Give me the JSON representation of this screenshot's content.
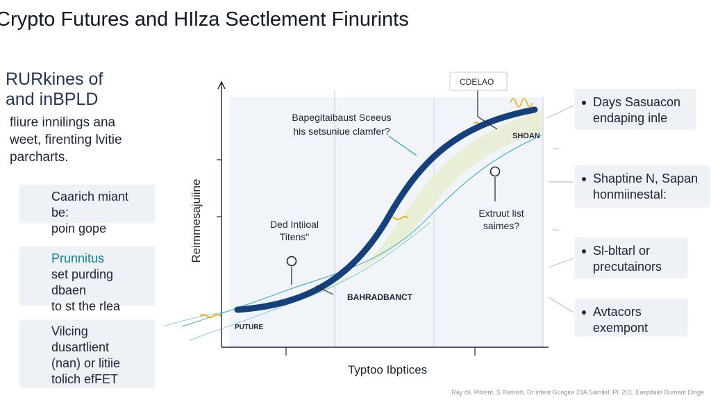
{
  "title": "Crypto Futures and HIlza Sectlement Finurints",
  "intro": {
    "heading": "RURkines of\nand inBPLD",
    "body": "fliure innilings ana\nweet, firenting lvitie\nparcharts."
  },
  "left_cards": [
    {
      "text": "Caarich miant be:\npoin gope",
      "highlight": false
    },
    {
      "text_teal": "Prunnitus",
      "text": "set purding dbaen\nto st the rlea",
      "highlight": true
    },
    {
      "text": "Vilcing\ndusartlient\n(nan) or litiie\ntolich efFET",
      "highlight": false
    }
  ],
  "right_cards": [
    {
      "text": "Days Sasuacon\nendaping inle"
    },
    {
      "text": "Shaptine N, Sapan\nhonmiinestal:"
    },
    {
      "text": "Sl-bltarl or\nprecutainors"
    },
    {
      "text": "Avtacors\nexempont"
    }
  ],
  "chart": {
    "ylabel": "Reimmesajuiine",
    "xlabel": "Typtoo Ibptices",
    "top_label": "CDELAO",
    "annotation_top": "Bapegitaibaust Sceeus\nhis setsuniue clamfer?",
    "annotation_mid_left": "Ded Intiioal\nTitens\"",
    "annotation_mid_right": "Extruut list\nsaimes?",
    "label_bottom": "BAHRADBANCT",
    "label_upper_right": "SHOAN",
    "label_left_start": "PUTURE"
  },
  "footer": "Ray dil, Pilvent, S Remish, Dr Infest Gungire 23A Samliel, Pl, 201, Easpitalis Dumant Dinge",
  "colors": {
    "curve": "#16407a",
    "band": "#e9eed6",
    "plot_bg": "#f1f4f8",
    "teal": "#0f7e8c",
    "accent_yellow": "#e8b22a",
    "card_bg": "#eef1f6"
  }
}
